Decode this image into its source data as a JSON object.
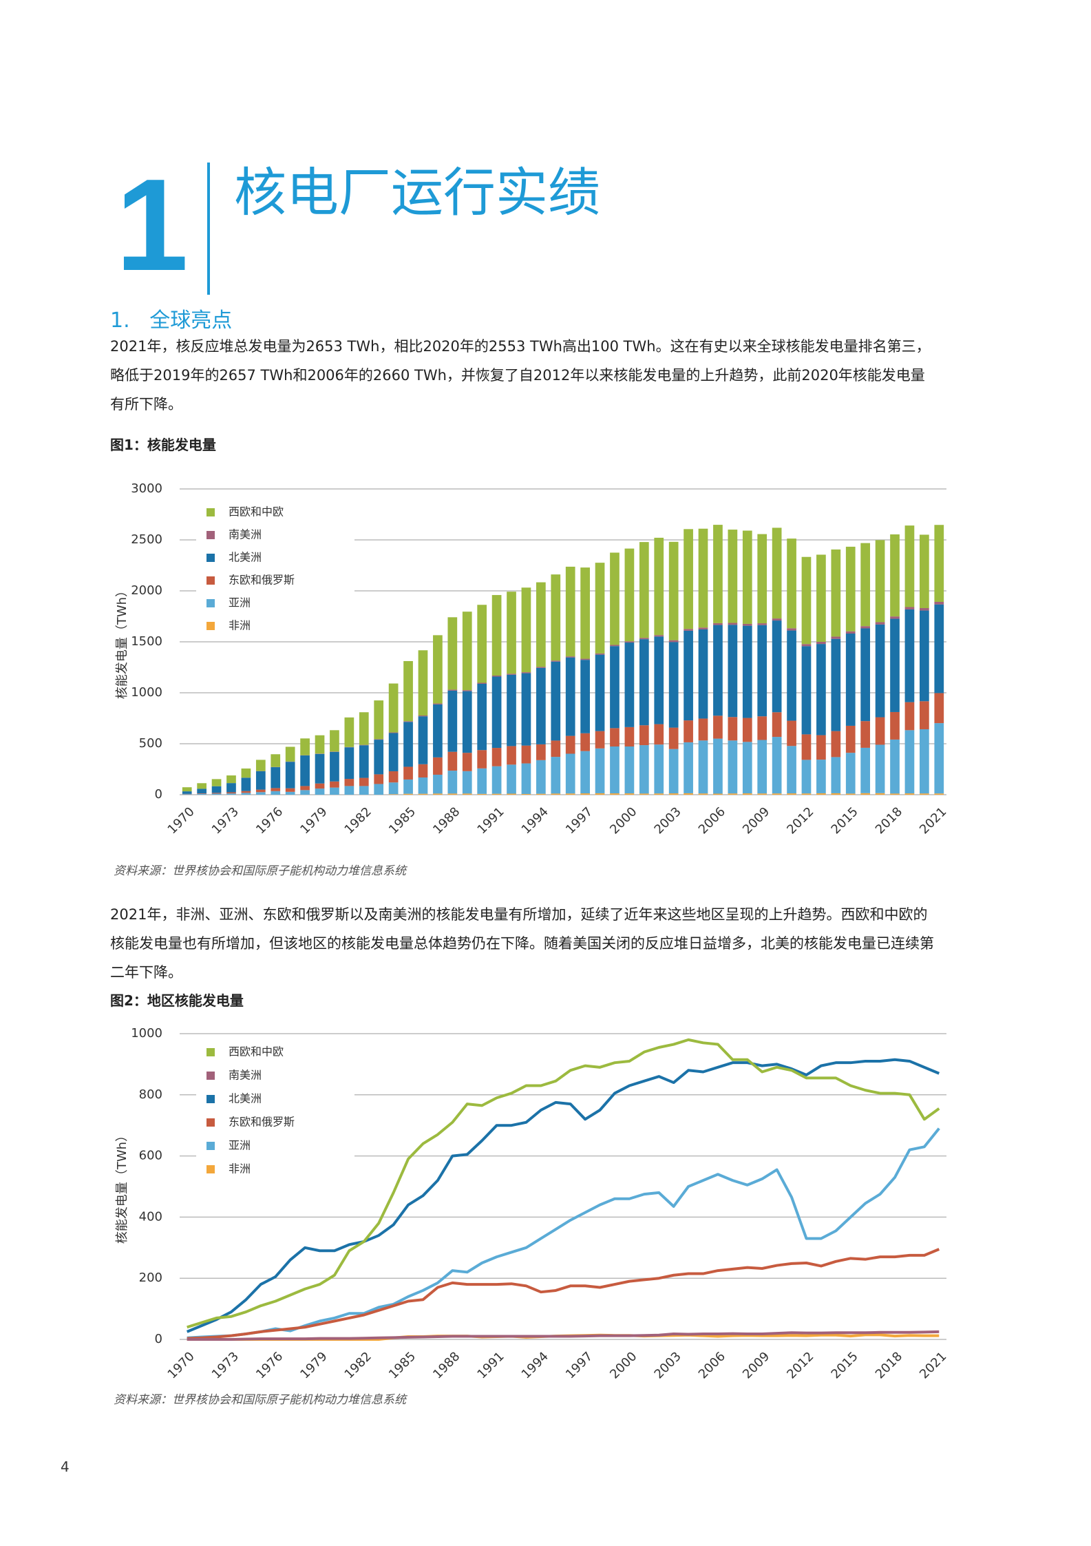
{
  "header": {
    "number": "1",
    "title": "核电厂运行实绩"
  },
  "section": {
    "heading": "1.   全球亮点"
  },
  "paragraphs": [
    "2021年，核反应堆总发电量为2653 TWh，相比2020年的2553 TWh高出100 TWh。这在有史以来全球核能发电量排名第三，略低于2019年的2657 TWh和2006年的2660 TWh，并恢复了自2012年以来核能发电量的上升趋势，此前2020年核能发电量有所下降。",
    "2021年，非洲、亚洲、东欧和俄罗斯以及南美洲的核能发电量有所增加，延续了近年来这些地区呈现的上升趋势。西欧和中欧的核能发电量也有所增加，但该地区的核能发电量总体趋势仍在下降。随着美国关闭的反应堆日益增多，北美的核能发电量已连续第二年下降。"
  ],
  "page_number": "4",
  "chart_data": [
    {
      "type": "stacked-bar",
      "title": "图1：核能发电量",
      "ylabel": "核能发电量（TWh）",
      "source": "资料来源：世界核协会和国际原子能机构动力堆信息系统",
      "categories": [
        "1970",
        null,
        null,
        "1973",
        null,
        null,
        "1976",
        null,
        null,
        "1979",
        null,
        null,
        "1982",
        null,
        null,
        "1985",
        null,
        null,
        "1988",
        null,
        null,
        "1991",
        null,
        null,
        "1994",
        null,
        null,
        "1997",
        null,
        null,
        "2000",
        null,
        null,
        "2003",
        null,
        null,
        "2006",
        null,
        null,
        "2009",
        null,
        null,
        "2012",
        null,
        null,
        "2015",
        null,
        null,
        "2018",
        null,
        null,
        "2021"
      ],
      "ylim": [
        0,
        3000
      ],
      "yticks": [
        0,
        500,
        1000,
        1500,
        2000,
        2500,
        3000
      ],
      "grid": true,
      "series": [
        {
          "name": "西欧和中欧",
          "color": "#9cba3f",
          "values": [
            40,
            55,
            70,
            75,
            90,
            110,
            125,
            145,
            165,
            180,
            210,
            290,
            320,
            380,
            480,
            590,
            640,
            670,
            710,
            770,
            765,
            790,
            805,
            830,
            830,
            845,
            880,
            895,
            890,
            905,
            910,
            940,
            955,
            965,
            980,
            970,
            965,
            915,
            915,
            875,
            890,
            880,
            855,
            855,
            855,
            830,
            815,
            805,
            805,
            800,
            720,
            755
          ]
        },
        {
          "name": "南美洲",
          "color": "#a2617a",
          "values": [
            0,
            0,
            0,
            0,
            1,
            2,
            2,
            2,
            2,
            3,
            3,
            3,
            4,
            5,
            6,
            7,
            8,
            9,
            10,
            10,
            10,
            10,
            10,
            10,
            10,
            10,
            10,
            11,
            12,
            12,
            12,
            13,
            14,
            18,
            17,
            18,
            18,
            19,
            18,
            18,
            20,
            22,
            21,
            21,
            22,
            22,
            22,
            23,
            23,
            23,
            24,
            25
          ]
        },
        {
          "name": "北美洲",
          "color": "#1b72a8",
          "values": [
            25,
            45,
            65,
            90,
            130,
            180,
            205,
            260,
            300,
            290,
            290,
            310,
            320,
            340,
            375,
            440,
            470,
            520,
            600,
            605,
            650,
            700,
            700,
            710,
            750,
            775,
            770,
            720,
            750,
            805,
            830,
            845,
            860,
            840,
            880,
            875,
            890,
            905,
            905,
            895,
            900,
            885,
            865,
            895,
            905,
            905,
            910,
            910,
            915,
            910,
            890,
            870
          ]
        },
        {
          "name": "东欧和俄罗斯",
          "color": "#c75b3f",
          "values": [
            3,
            5,
            8,
            12,
            18,
            25,
            30,
            35,
            40,
            50,
            60,
            70,
            80,
            95,
            110,
            125,
            130,
            170,
            185,
            180,
            180,
            180,
            182,
            175,
            155,
            160,
            175,
            175,
            170,
            180,
            190,
            195,
            200,
            210,
            215,
            215,
            225,
            230,
            235,
            232,
            242,
            248,
            250,
            240,
            255,
            265,
            262,
            270,
            270,
            275,
            275,
            295
          ]
        },
        {
          "name": "亚洲",
          "color": "#5aabd6",
          "values": [
            5,
            8,
            10,
            12,
            18,
            25,
            35,
            28,
            45,
            60,
            70,
            85,
            85,
            105,
            115,
            140,
            160,
            185,
            225,
            220,
            250,
            270,
            285,
            300,
            330,
            360,
            390,
            415,
            440,
            460,
            460,
            475,
            480,
            435,
            500,
            520,
            540,
            520,
            505,
            525,
            555,
            465,
            330,
            330,
            355,
            400,
            445,
            475,
            530,
            620,
            630,
            690
          ]
        },
        {
          "name": "非洲",
          "color": "#f3a73b",
          "values": [
            0,
            0,
            0,
            0,
            0,
            0,
            0,
            0,
            0,
            0,
            0,
            0,
            0,
            0,
            5,
            9,
            9,
            11,
            11,
            11,
            8,
            9,
            10,
            7,
            9,
            11,
            12,
            13,
            14,
            13,
            13,
            11,
            12,
            13,
            14,
            12,
            10,
            12,
            13,
            12,
            12,
            13,
            12,
            14,
            14,
            11,
            15,
            15,
            11,
            13,
            12,
            12
          ]
        }
      ]
    },
    {
      "type": "line",
      "title": "图2：地区核能发电量",
      "ylabel": "核能发电量（TWh）",
      "source": "资料来源：世界核协会和国际原子能机构动力堆信息系统",
      "categories": [
        "1970",
        null,
        null,
        "1973",
        null,
        null,
        "1976",
        null,
        null,
        "1979",
        null,
        null,
        "1982",
        null,
        null,
        "1985",
        null,
        null,
        "1988",
        null,
        null,
        "1991",
        null,
        null,
        "1994",
        null,
        null,
        "1997",
        null,
        null,
        "2000",
        null,
        null,
        "2003",
        null,
        null,
        "2006",
        null,
        null,
        "2009",
        null,
        null,
        "2012",
        null,
        null,
        "2015",
        null,
        null,
        "2018",
        null,
        null,
        "2021"
      ],
      "ylim": [
        0,
        1000
      ],
      "yticks": [
        0,
        200,
        400,
        600,
        800,
        1000
      ],
      "grid": true,
      "series": [
        {
          "name": "西欧和中欧",
          "color": "#9cba3f",
          "values": [
            40,
            55,
            70,
            75,
            90,
            110,
            125,
            145,
            165,
            180,
            210,
            290,
            320,
            380,
            480,
            590,
            640,
            670,
            710,
            770,
            765,
            790,
            805,
            830,
            830,
            845,
            880,
            895,
            890,
            905,
            910,
            940,
            955,
            965,
            980,
            970,
            965,
            915,
            915,
            875,
            890,
            880,
            855,
            855,
            855,
            830,
            815,
            805,
            805,
            800,
            720,
            755
          ]
        },
        {
          "name": "南美洲",
          "color": "#a2617a",
          "values": [
            0,
            0,
            0,
            0,
            1,
            2,
            2,
            2,
            2,
            3,
            3,
            3,
            4,
            5,
            6,
            7,
            8,
            9,
            10,
            10,
            10,
            10,
            10,
            10,
            10,
            10,
            10,
            11,
            12,
            12,
            12,
            13,
            14,
            18,
            17,
            18,
            18,
            19,
            18,
            18,
            20,
            22,
            21,
            21,
            22,
            22,
            22,
            23,
            23,
            23,
            24,
            25
          ]
        },
        {
          "name": "北美洲",
          "color": "#1b72a8",
          "values": [
            25,
            45,
            65,
            90,
            130,
            180,
            205,
            260,
            300,
            290,
            290,
            310,
            320,
            340,
            375,
            440,
            470,
            520,
            600,
            605,
            650,
            700,
            700,
            710,
            750,
            775,
            770,
            720,
            750,
            805,
            830,
            845,
            860,
            840,
            880,
            875,
            890,
            905,
            905,
            895,
            900,
            885,
            865,
            895,
            905,
            905,
            910,
            910,
            915,
            910,
            890,
            870
          ]
        },
        {
          "name": "东欧和俄罗斯",
          "color": "#c75b3f",
          "values": [
            3,
            5,
            8,
            12,
            18,
            25,
            30,
            35,
            40,
            50,
            60,
            70,
            80,
            95,
            110,
            125,
            130,
            170,
            185,
            180,
            180,
            180,
            182,
            175,
            155,
            160,
            175,
            175,
            170,
            180,
            190,
            195,
            200,
            210,
            215,
            215,
            225,
            230,
            235,
            232,
            242,
            248,
            250,
            240,
            255,
            265,
            262,
            270,
            270,
            275,
            275,
            295
          ]
        },
        {
          "name": "亚洲",
          "color": "#5aabd6",
          "values": [
            5,
            8,
            10,
            12,
            18,
            25,
            35,
            28,
            45,
            60,
            70,
            85,
            85,
            105,
            115,
            140,
            160,
            185,
            225,
            220,
            250,
            270,
            285,
            300,
            330,
            360,
            390,
            415,
            440,
            460,
            460,
            475,
            480,
            435,
            500,
            520,
            540,
            520,
            505,
            525,
            555,
            465,
            330,
            330,
            355,
            400,
            445,
            475,
            530,
            620,
            630,
            690
          ]
        },
        {
          "name": "非洲",
          "color": "#f3a73b",
          "values": [
            0,
            0,
            0,
            0,
            0,
            0,
            0,
            0,
            0,
            0,
            0,
            0,
            0,
            0,
            5,
            9,
            9,
            11,
            11,
            11,
            8,
            9,
            10,
            7,
            9,
            11,
            12,
            13,
            14,
            13,
            13,
            11,
            12,
            13,
            14,
            12,
            10,
            12,
            13,
            12,
            12,
            13,
            12,
            14,
            14,
            11,
            15,
            15,
            11,
            13,
            12,
            12
          ]
        }
      ]
    }
  ]
}
